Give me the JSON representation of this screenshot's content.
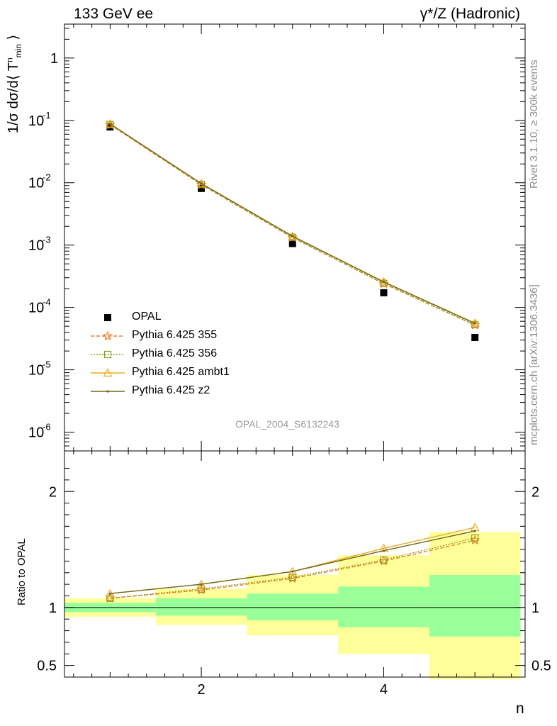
{
  "header": {
    "title_left": "133 GeV ee",
    "title_right": "γ*/Z (Hadronic)"
  },
  "side_texts": {
    "rivet": "Rivet 3.1.10, ≥ 300k events",
    "mcplots": "mcplots.cern.ch [arXiv:1306.3436]"
  },
  "watermark": "OPAL_2004_S6132243",
  "axes": {
    "x_label": "n",
    "y_label_main_prefix": "1/σ dσ/d⟨ T",
    "y_label_main_sup": "n",
    "y_label_main_sub": "min",
    "y_label_main_suffix": " ⟩",
    "y_label_ratio": "Ratio to OPAL"
  },
  "colors": {
    "data": "#000000",
    "p355": "#f07f28",
    "p356": "#8a9a1c",
    "ambt1": "#f0a81e",
    "z2": "#6e6a1e",
    "band_inner": "#99ff99",
    "band_outer": "#ffff99"
  },
  "chart_data": [
    {
      "type": "line",
      "panel": "main",
      "x": [
        1,
        2,
        3,
        4,
        5
      ],
      "xlim": [
        0.5,
        5.55
      ],
      "ylim": [
        5e-07,
        3.5
      ],
      "y_scale": "log",
      "x_ticks": [
        "2",
        "4"
      ],
      "y_ticks": [
        "1",
        "10^-1",
        "10^-2",
        "10^-3",
        "10^-4",
        "10^-5",
        "10^-6"
      ],
      "legend": {
        "placement": "bottom-left",
        "entries": [
          "OPAL",
          "Pythia 6.425 355",
          "Pythia 6.425 356",
          "Pythia 6.425 ambt1",
          "Pythia 6.425 z2"
        ]
      },
      "series": [
        {
          "name": "OPAL",
          "marker": "square",
          "values": [
            0.0785,
            0.0081,
            0.00106,
            0.000172,
            3.3e-05
          ]
        },
        {
          "name": "Pythia 6.425 355",
          "marker": "star",
          "values": [
            0.085,
            0.0093,
            0.00132,
            0.00024,
            5.2e-05
          ]
        },
        {
          "name": "Pythia 6.425 356",
          "marker": "open-square",
          "values": [
            0.086,
            0.0094,
            0.00133,
            0.000243,
            5.3e-05
          ]
        },
        {
          "name": "Pythia 6.425 ambt1",
          "marker": "triangle",
          "values": [
            0.088,
            0.0097,
            0.00139,
            0.000259,
            5.6e-05
          ]
        },
        {
          "name": "Pythia 6.425 z2",
          "marker": "dot",
          "values": [
            0.088,
            0.0097,
            0.00139,
            0.000256,
            5.55e-05
          ]
        }
      ]
    },
    {
      "type": "line",
      "panel": "ratio",
      "x": [
        1,
        2,
        3,
        4,
        5
      ],
      "xlim": [
        0.5,
        5.55
      ],
      "ylim": [
        0.4,
        2.35
      ],
      "y_ticks": [
        "0.5",
        "1",
        "2"
      ],
      "reference": 1,
      "bands": {
        "bins": [
          [
            0.5,
            1.5
          ],
          [
            1.5,
            2.5
          ],
          [
            2.5,
            3.5
          ],
          [
            3.5,
            4.5
          ],
          [
            4.5,
            5.5
          ]
        ],
        "inner": [
          [
            0.96,
            1.04
          ],
          [
            0.93,
            1.08
          ],
          [
            0.89,
            1.12
          ],
          [
            0.83,
            1.18
          ],
          [
            0.75,
            1.28
          ]
        ],
        "outer": [
          [
            0.92,
            1.08
          ],
          [
            0.85,
            1.16
          ],
          [
            0.76,
            1.28
          ],
          [
            0.6,
            1.45
          ],
          [
            0.38,
            1.65
          ]
        ]
      },
      "series": [
        {
          "name": "Pythia 6.425 355",
          "values": [
            1.08,
            1.15,
            1.25,
            1.4,
            1.58
          ]
        },
        {
          "name": "Pythia 6.425 356",
          "values": [
            1.08,
            1.16,
            1.26,
            1.41,
            1.6
          ]
        },
        {
          "name": "Pythia 6.425 ambt1",
          "values": [
            1.12,
            1.2,
            1.31,
            1.51,
            1.69
          ]
        },
        {
          "name": "Pythia 6.425 z2",
          "values": [
            1.12,
            1.2,
            1.31,
            1.49,
            1.66
          ]
        }
      ]
    }
  ]
}
